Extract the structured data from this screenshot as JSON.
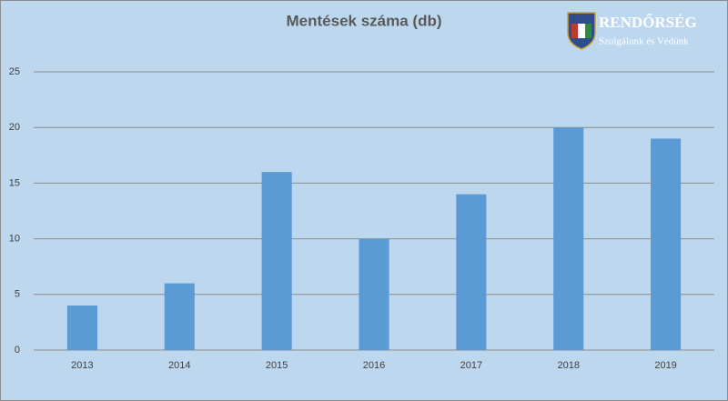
{
  "chart_data": {
    "type": "bar",
    "title": "Mentések száma (db)",
    "categories": [
      "2013",
      "2014",
      "2015",
      "2016",
      "2017",
      "2018",
      "2019"
    ],
    "values": [
      4,
      6,
      16,
      10,
      14,
      20,
      19
    ],
    "color": "#5b9bd5",
    "ylim": [
      0,
      25
    ],
    "yticks": [
      0,
      5,
      10,
      15,
      20,
      25
    ],
    "grid": true
  },
  "logo": {
    "title": "RENDŐRSÉG",
    "subtitle": "Szolgálunk és Védünk"
  }
}
